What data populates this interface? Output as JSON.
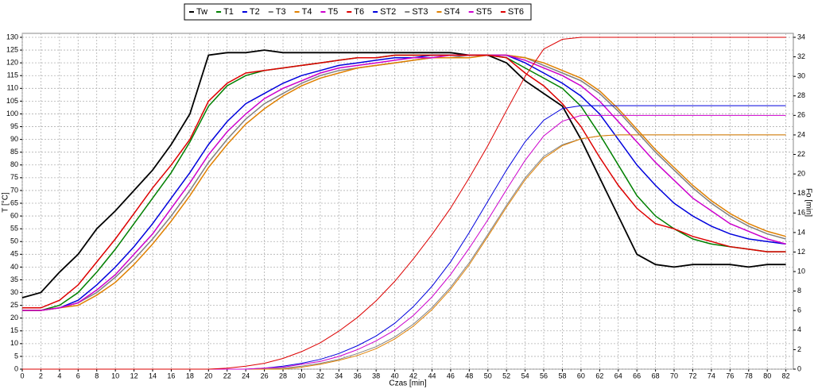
{
  "chart_data": {
    "type": "line",
    "x_label": "Czas [min]",
    "y_label": "T [°C]",
    "y2_label": "Fo [min]",
    "grid": true,
    "xlim": [
      0,
      82.8
    ],
    "ylim": [
      0,
      130
    ],
    "y2lim": [
      0,
      34
    ],
    "xticks": [
      0,
      2,
      4,
      6,
      8,
      10,
      12,
      14,
      16,
      18,
      20,
      22,
      24,
      26,
      28,
      30,
      32,
      34,
      36,
      38,
      40,
      42,
      44,
      46,
      48,
      50,
      52,
      54,
      56,
      58,
      60,
      62,
      64,
      66,
      68,
      70,
      72,
      74,
      76,
      78,
      80,
      82
    ],
    "yticks": [
      0,
      5,
      10,
      15,
      20,
      25,
      30,
      35,
      40,
      45,
      50,
      55,
      60,
      65,
      70,
      75,
      80,
      85,
      90,
      95,
      100,
      105,
      110,
      115,
      120,
      125,
      130
    ],
    "y2ticks": [
      0,
      2,
      4,
      6,
      8,
      10,
      12,
      14,
      16,
      18,
      20,
      22,
      24,
      26,
      28,
      30,
      32,
      34
    ],
    "x": [
      0,
      2,
      4,
      6,
      8,
      10,
      12,
      14,
      16,
      18,
      20,
      22,
      24,
      26,
      28,
      30,
      32,
      34,
      36,
      38,
      40,
      42,
      44,
      46,
      48,
      50,
      52,
      54,
      56,
      58,
      60,
      62,
      64,
      66,
      68,
      70,
      72,
      74,
      76,
      78,
      80,
      82
    ],
    "series": [
      {
        "name": "Tw",
        "color": "#000000",
        "values": [
          28,
          30,
          38,
          45,
          55,
          62,
          70,
          78,
          88,
          100,
          123,
          124,
          124,
          125,
          124,
          124,
          124,
          124,
          124,
          124,
          124,
          124,
          124,
          124,
          123,
          123,
          120,
          113,
          108,
          103,
          90,
          75,
          60,
          45,
          41,
          40,
          41,
          41,
          41,
          40,
          41,
          41
        ]
      },
      {
        "name": "T1",
        "color": "#008000",
        "values": [
          23,
          23,
          25,
          30,
          38,
          47,
          57,
          67,
          77,
          89,
          103,
          111,
          115,
          117,
          118,
          119,
          120,
          121,
          122,
          122,
          123,
          123,
          123,
          123,
          123,
          123,
          122,
          118,
          114,
          110,
          103,
          92,
          80,
          68,
          60,
          55,
          51,
          49,
          48,
          47,
          46,
          46
        ]
      },
      {
        "name": "T2",
        "color": "#0000dd",
        "values": [
          23,
          23,
          24,
          27,
          33,
          40,
          48,
          57,
          67,
          77,
          88,
          97,
          104,
          108,
          112,
          115,
          117,
          119,
          120,
          121,
          122,
          122,
          123,
          123,
          123,
          123,
          123,
          120,
          116,
          112,
          107,
          100,
          90,
          80,
          72,
          65,
          60,
          56,
          53,
          51,
          50,
          49
        ]
      },
      {
        "name": "T3",
        "color": "#808080",
        "values": [
          23,
          23,
          24,
          26,
          30,
          36,
          43,
          51,
          60,
          70,
          81,
          90,
          98,
          104,
          108,
          112,
          115,
          117,
          118,
          119,
          120,
          121,
          122,
          122,
          123,
          123,
          123,
          122,
          119,
          116,
          113,
          108,
          101,
          93,
          85,
          78,
          71,
          65,
          60,
          56,
          53,
          51
        ]
      },
      {
        "name": "T4",
        "color": "#e08000",
        "values": [
          23,
          23,
          24,
          25,
          29,
          34,
          41,
          49,
          58,
          68,
          79,
          88,
          96,
          102,
          107,
          111,
          114,
          116,
          118,
          119,
          120,
          121,
          122,
          122,
          122,
          123,
          123,
          122,
          120,
          117,
          114,
          109,
          102,
          94,
          86,
          79,
          72,
          66,
          61,
          57,
          54,
          52
        ]
      },
      {
        "name": "T5",
        "color": "#cc00cc",
        "values": [
          23,
          23,
          24,
          26,
          31,
          37,
          45,
          53,
          63,
          73,
          84,
          93,
          100,
          106,
          110,
          113,
          116,
          118,
          119,
          120,
          121,
          122,
          122,
          123,
          123,
          123,
          123,
          121,
          118,
          115,
          111,
          105,
          97,
          89,
          81,
          74,
          67,
          62,
          57,
          54,
          51,
          49
        ]
      },
      {
        "name": "T6",
        "color": "#dd0000",
        "values": [
          24,
          24,
          27,
          33,
          42,
          51,
          61,
          71,
          80,
          90,
          105,
          112,
          116,
          117,
          118,
          119,
          120,
          121,
          122,
          122,
          123,
          123,
          123,
          123,
          123,
          123,
          122,
          116,
          111,
          104,
          95,
          83,
          72,
          63,
          57,
          55,
          52,
          50,
          48,
          47,
          46,
          46
        ]
      },
      {
        "name": "ST2",
        "color": "#0000dd",
        "axis": "y2",
        "values": [
          0,
          0,
          0,
          0,
          0,
          0,
          0,
          0,
          0,
          0,
          0,
          0,
          0,
          0.1,
          0.3,
          0.6,
          1,
          1.6,
          2.4,
          3.4,
          4.7,
          6.4,
          8.5,
          11,
          14,
          17.2,
          20.4,
          23.3,
          25.5,
          26.7,
          27,
          27,
          27,
          27,
          27,
          27,
          27,
          27,
          27,
          27,
          27,
          27
        ]
      },
      {
        "name": "ST3",
        "color": "#808080",
        "axis": "y2",
        "values": [
          0,
          0,
          0,
          0,
          0,
          0,
          0,
          0,
          0,
          0,
          0,
          0,
          0,
          0,
          0.1,
          0.3,
          0.6,
          1,
          1.6,
          2.3,
          3.3,
          4.6,
          6.3,
          8.4,
          10.9,
          13.8,
          16.8,
          19.6,
          21.8,
          23,
          23.6,
          23.9,
          24,
          24,
          24,
          24,
          24,
          24,
          24,
          24,
          24,
          24
        ]
      },
      {
        "name": "ST4",
        "color": "#e08000",
        "axis": "y2",
        "values": [
          0,
          0,
          0,
          0,
          0,
          0,
          0,
          0,
          0,
          0,
          0,
          0,
          0,
          0,
          0,
          0.2,
          0.5,
          0.9,
          1.4,
          2.1,
          3.1,
          4.4,
          6.1,
          8.2,
          10.7,
          13.6,
          16.6,
          19.4,
          21.6,
          22.9,
          23.6,
          23.9,
          24,
          24,
          24,
          24,
          24,
          24,
          24,
          24,
          24,
          24
        ]
      },
      {
        "name": "ST5",
        "color": "#cc00cc",
        "axis": "y2",
        "values": [
          0,
          0,
          0,
          0,
          0,
          0,
          0,
          0,
          0,
          0,
          0,
          0,
          0,
          0.1,
          0.2,
          0.5,
          0.8,
          1.3,
          2,
          2.9,
          4,
          5.5,
          7.4,
          9.7,
          12.4,
          15.3,
          18.4,
          21.4,
          23.9,
          25.4,
          26,
          26,
          26,
          26,
          26,
          26,
          26,
          26,
          26,
          26,
          26,
          26
        ]
      },
      {
        "name": "ST6",
        "color": "#dd0000",
        "axis": "y2",
        "values": [
          0,
          0,
          0,
          0,
          0,
          0,
          0,
          0,
          0,
          0,
          0,
          0.1,
          0.3,
          0.6,
          1.1,
          1.8,
          2.7,
          3.9,
          5.3,
          7,
          9,
          11.3,
          13.8,
          16.5,
          19.6,
          22.9,
          26.5,
          30,
          32.8,
          33.8,
          34,
          34,
          34,
          34,
          34,
          34,
          34,
          34,
          34,
          34,
          34,
          34
        ]
      }
    ]
  }
}
